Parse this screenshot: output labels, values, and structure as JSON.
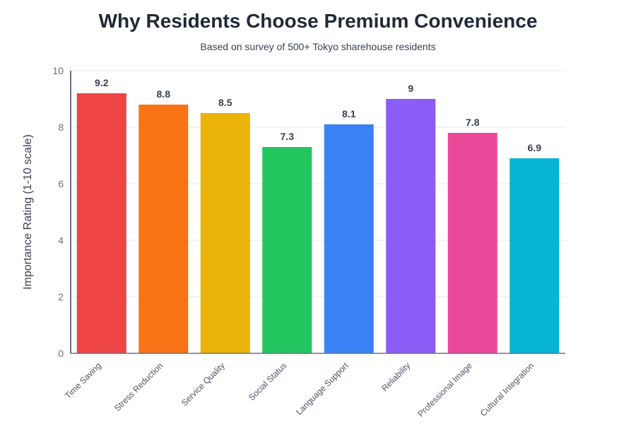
{
  "chart_data": {
    "type": "bar",
    "title": "Why Residents Choose Premium Convenience",
    "categories": [
      "Time Saving",
      "Stress Reduction",
      "Service Quality",
      "Social Status",
      "Language Support",
      "Reliability",
      "Professional Image",
      "Cultural Integration"
    ],
    "values": [
      9.2,
      8.8,
      8.5,
      7.3,
      8.1,
      9,
      7.8,
      6.9
    ],
    "colors": [
      "#ef4444",
      "#f97316",
      "#eab308",
      "#22c55e",
      "#3b82f6",
      "#8b5cf6",
      "#ec4899",
      "#06b6d4"
    ],
    "ylabel": "Importance Rating (1-10 scale)",
    "subtitle": "Based on survey of 500+ Tokyo sharehouse residents",
    "ylim": [
      0,
      10
    ],
    "yticks": [
      0,
      2,
      4,
      6,
      8,
      10
    ],
    "grid": true
  }
}
